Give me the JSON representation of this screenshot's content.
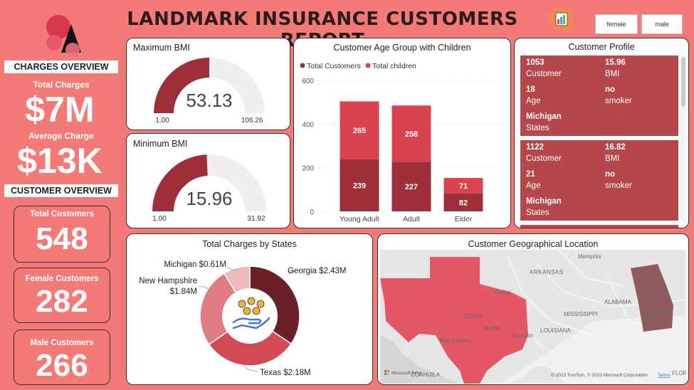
{
  "header": {
    "title": "LANDMARK INSURANCE CUSTOMERS REPORT",
    "slicers": [
      "female",
      "male"
    ]
  },
  "charges_overview": {
    "section_label": "CHARGES OVERVIEW",
    "total_charges_label": "Total Charges",
    "total_charges_value": "$7M",
    "average_charge_label": "Average Charge",
    "average_charge_value": "$13K"
  },
  "customer_overview": {
    "section_label": "CUSTOMER OVERVIEW",
    "total_label": "Total Customers",
    "total_value": "548",
    "female_label": "Female Customers",
    "female_value": "282",
    "male_label": "Male Customers",
    "male_value": "266"
  },
  "max_bmi": {
    "title": "Maximum BMI",
    "value_text": "53.13",
    "min_text": "1.00",
    "max_text": "106.26",
    "fraction": 0.5
  },
  "min_bmi": {
    "title": "Minimum BMI",
    "value_text": "15.96",
    "min_text": "1.00",
    "max_text": "31.92",
    "fraction": 0.4858
  },
  "age_chart": {
    "title": "Customer Age Group with Children",
    "legend": [
      "Total Customers",
      "Total children"
    ]
  },
  "profile": {
    "title": "Customer Profile",
    "cards": [
      {
        "customer": "1053",
        "customer_label": "Customer",
        "bmi": "15.96",
        "bmi_label": "BMI",
        "age": "18",
        "age_label": "Age",
        "smoker": "no",
        "smoker_label": "smoker",
        "state": "Michigan",
        "state_label": "States"
      },
      {
        "customer": "1122",
        "customer_label": "Customer",
        "bmi": "16.82",
        "bmi_label": "BMI",
        "age": "21",
        "age_label": "Age",
        "smoker": "no",
        "smoker_label": "smoker",
        "state": "Michigan",
        "state_label": "States"
      }
    ]
  },
  "charges_by_state": {
    "title": "Total Charges by States",
    "labels": {
      "georgia": "Georgia $2.43M",
      "texas": "Texas $2.18M",
      "nh_line1": "New Hampshire",
      "nh_line2": "$1.84M",
      "michigan": "Michigan $0.61M"
    }
  },
  "map": {
    "title": "Customer Geographical Location",
    "places": [
      "Memphis",
      "ARKANSAS",
      "Dallas",
      "TEXAS",
      "Austin",
      "San Antonio",
      "Houston",
      "LOUISIANA",
      "MISSISSIPPI",
      "ALABAMA",
      "GEORGIA",
      "COAHUILA",
      "FLOR"
    ],
    "credits": "© 2023 TomTom, © 2023 Microsoft Corporation",
    "terms": "Terms",
    "bing": "Microsoft Bing"
  },
  "colors": {
    "background": "#f47a78",
    "dark_red": "#9e2f38",
    "mid_red": "#d8434f",
    "georgia": "#6b2027",
    "texas": "#d24a55",
    "new_hampshire": "#e07b82",
    "michigan": "#efb8bc",
    "profile_card": "#b5464b"
  },
  "chart_data": [
    {
      "type": "bar",
      "stacked": true,
      "title": "Customer Age Group with Children",
      "categories": [
        "Young Adult",
        "Adult",
        "Elder"
      ],
      "series": [
        {
          "name": "Total Customers",
          "values": [
            239,
            227,
            82
          ]
        },
        {
          "name": "Total children",
          "values": [
            265,
            258,
            71
          ]
        }
      ],
      "ylim": [
        0,
        600
      ],
      "yticks": [
        "0",
        "200",
        "400",
        "600"
      ],
      "legend": "top-left"
    },
    {
      "type": "pie",
      "donut": true,
      "title": "Total Charges by States",
      "categories": [
        "Georgia",
        "Texas",
        "New Hampshire",
        "Michigan"
      ],
      "values": [
        2.43,
        2.18,
        1.84,
        0.61
      ],
      "unit": "$M"
    }
  ]
}
